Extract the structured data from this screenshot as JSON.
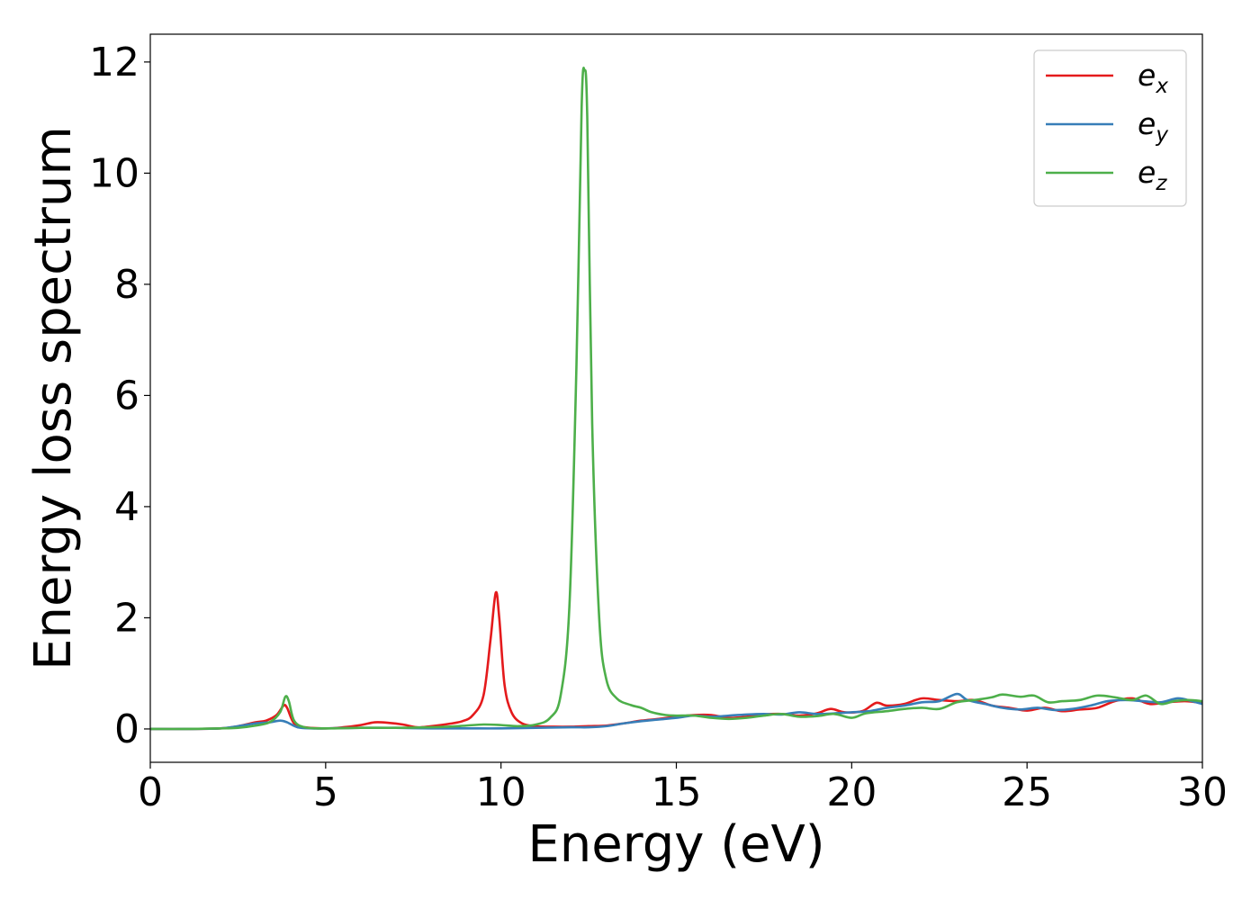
{
  "chart_data": {
    "type": "line",
    "title": "",
    "xlabel": "Energy (eV)",
    "ylabel": "Energy loss spectrum",
    "xlim": [
      0,
      30
    ],
    "ylim": [
      -0.6,
      12.5
    ],
    "xticks": [
      0,
      5,
      10,
      15,
      20,
      25,
      30
    ],
    "xtick_labels": [
      "0",
      "5",
      "10",
      "15",
      "20",
      "25",
      "30"
    ],
    "yticks": [
      0,
      2,
      4,
      6,
      8,
      10,
      12
    ],
    "ytick_labels": [
      "0",
      "2",
      "4",
      "6",
      "8",
      "10",
      "12"
    ],
    "grid": false,
    "legend_position": "top-right",
    "series": [
      {
        "name": "e_x",
        "label_base": "e",
        "label_sub": "x",
        "color": "#e41a1c",
        "points": [
          [
            0,
            0
          ],
          [
            1,
            0
          ],
          [
            2,
            0.01
          ],
          [
            2.5,
            0.05
          ],
          [
            3,
            0.12
          ],
          [
            3.3,
            0.15
          ],
          [
            3.6,
            0.25
          ],
          [
            3.8,
            0.42
          ],
          [
            3.9,
            0.38
          ],
          [
            4.1,
            0.1
          ],
          [
            4.4,
            0.03
          ],
          [
            5,
            0.01
          ],
          [
            5.5,
            0.03
          ],
          [
            6,
            0.07
          ],
          [
            6.4,
            0.12
          ],
          [
            6.8,
            0.11
          ],
          [
            7.2,
            0.08
          ],
          [
            7.6,
            0.03
          ],
          [
            8,
            0.05
          ],
          [
            8.5,
            0.09
          ],
          [
            8.9,
            0.14
          ],
          [
            9.2,
            0.25
          ],
          [
            9.5,
            0.6
          ],
          [
            9.7,
            1.6
          ],
          [
            9.85,
            2.45
          ],
          [
            9.95,
            2.0
          ],
          [
            10.1,
            0.8
          ],
          [
            10.3,
            0.3
          ],
          [
            10.6,
            0.1
          ],
          [
            11,
            0.05
          ],
          [
            11.5,
            0.04
          ],
          [
            12,
            0.04
          ],
          [
            12.5,
            0.05
          ],
          [
            13,
            0.06
          ],
          [
            13.5,
            0.1
          ],
          [
            14,
            0.15
          ],
          [
            14.5,
            0.18
          ],
          [
            15,
            0.22
          ],
          [
            15.5,
            0.25
          ],
          [
            16,
            0.25
          ],
          [
            16.5,
            0.2
          ],
          [
            17,
            0.22
          ],
          [
            17.5,
            0.26
          ],
          [
            18,
            0.27
          ],
          [
            18.5,
            0.24
          ],
          [
            19,
            0.28
          ],
          [
            19.4,
            0.36
          ],
          [
            19.8,
            0.3
          ],
          [
            20.3,
            0.32
          ],
          [
            20.7,
            0.47
          ],
          [
            21,
            0.42
          ],
          [
            21.5,
            0.45
          ],
          [
            22,
            0.55
          ],
          [
            22.5,
            0.52
          ],
          [
            23,
            0.5
          ],
          [
            23.5,
            0.52
          ],
          [
            24,
            0.42
          ],
          [
            24.5,
            0.38
          ],
          [
            25,
            0.33
          ],
          [
            25.5,
            0.38
          ],
          [
            26,
            0.32
          ],
          [
            26.5,
            0.35
          ],
          [
            27,
            0.38
          ],
          [
            27.5,
            0.5
          ],
          [
            28,
            0.55
          ],
          [
            28.5,
            0.45
          ],
          [
            29,
            0.48
          ],
          [
            29.5,
            0.5
          ],
          [
            30,
            0.47
          ]
        ]
      },
      {
        "name": "e_y",
        "label_base": "e",
        "label_sub": "y",
        "color": "#377eb8",
        "points": [
          [
            0,
            0
          ],
          [
            1,
            0
          ],
          [
            2,
            0.01
          ],
          [
            2.5,
            0.05
          ],
          [
            3,
            0.1
          ],
          [
            3.4,
            0.12
          ],
          [
            3.7,
            0.15
          ],
          [
            3.9,
            0.12
          ],
          [
            4.2,
            0.03
          ],
          [
            4.6,
            0.01
          ],
          [
            5,
            0.01
          ],
          [
            6,
            0.02
          ],
          [
            7,
            0.02
          ],
          [
            8,
            0.01
          ],
          [
            9,
            0.01
          ],
          [
            10,
            0.01
          ],
          [
            11,
            0.02
          ],
          [
            12,
            0.03
          ],
          [
            12.5,
            0.03
          ],
          [
            13,
            0.05
          ],
          [
            13.5,
            0.1
          ],
          [
            14,
            0.14
          ],
          [
            14.5,
            0.17
          ],
          [
            15,
            0.2
          ],
          [
            15.5,
            0.24
          ],
          [
            16,
            0.22
          ],
          [
            16.5,
            0.24
          ],
          [
            17,
            0.26
          ],
          [
            17.5,
            0.27
          ],
          [
            18,
            0.26
          ],
          [
            18.5,
            0.3
          ],
          [
            19,
            0.27
          ],
          [
            19.5,
            0.28
          ],
          [
            20,
            0.3
          ],
          [
            20.5,
            0.32
          ],
          [
            21,
            0.38
          ],
          [
            21.5,
            0.42
          ],
          [
            22,
            0.48
          ],
          [
            22.5,
            0.5
          ],
          [
            23,
            0.63
          ],
          [
            23.3,
            0.52
          ],
          [
            23.8,
            0.45
          ],
          [
            24.3,
            0.38
          ],
          [
            24.8,
            0.35
          ],
          [
            25.3,
            0.38
          ],
          [
            25.8,
            0.34
          ],
          [
            26.3,
            0.36
          ],
          [
            26.8,
            0.42
          ],
          [
            27.3,
            0.5
          ],
          [
            27.8,
            0.52
          ],
          [
            28.3,
            0.5
          ],
          [
            28.8,
            0.48
          ],
          [
            29.3,
            0.55
          ],
          [
            29.7,
            0.5
          ],
          [
            30,
            0.45
          ]
        ]
      },
      {
        "name": "e_z",
        "label_base": "e",
        "label_sub": "z",
        "color": "#4daf4a",
        "points": [
          [
            0,
            0
          ],
          [
            1,
            0
          ],
          [
            2,
            0.01
          ],
          [
            2.5,
            0.02
          ],
          [
            3,
            0.06
          ],
          [
            3.4,
            0.12
          ],
          [
            3.7,
            0.3
          ],
          [
            3.85,
            0.58
          ],
          [
            3.95,
            0.5
          ],
          [
            4.1,
            0.15
          ],
          [
            4.4,
            0.03
          ],
          [
            5,
            0.01
          ],
          [
            6,
            0.02
          ],
          [
            7,
            0.02
          ],
          [
            8,
            0.03
          ],
          [
            8.5,
            0.04
          ],
          [
            9,
            0.06
          ],
          [
            9.5,
            0.08
          ],
          [
            10,
            0.07
          ],
          [
            10.5,
            0.05
          ],
          [
            11,
            0.08
          ],
          [
            11.4,
            0.2
          ],
          [
            11.7,
            0.6
          ],
          [
            11.95,
            2.2
          ],
          [
            12.15,
            6.5
          ],
          [
            12.3,
            11.2
          ],
          [
            12.38,
            11.85
          ],
          [
            12.46,
            11.0
          ],
          [
            12.6,
            5.5
          ],
          [
            12.8,
            2.0
          ],
          [
            13,
            0.9
          ],
          [
            13.3,
            0.55
          ],
          [
            13.7,
            0.43
          ],
          [
            14,
            0.38
          ],
          [
            14.3,
            0.3
          ],
          [
            14.7,
            0.25
          ],
          [
            15,
            0.24
          ],
          [
            15.5,
            0.24
          ],
          [
            16,
            0.2
          ],
          [
            16.5,
            0.18
          ],
          [
            17,
            0.2
          ],
          [
            17.5,
            0.24
          ],
          [
            18,
            0.27
          ],
          [
            18.5,
            0.22
          ],
          [
            19,
            0.23
          ],
          [
            19.5,
            0.27
          ],
          [
            20,
            0.2
          ],
          [
            20.4,
            0.28
          ],
          [
            21,
            0.32
          ],
          [
            21.5,
            0.36
          ],
          [
            22,
            0.38
          ],
          [
            22.5,
            0.36
          ],
          [
            23,
            0.48
          ],
          [
            23.5,
            0.52
          ],
          [
            24,
            0.57
          ],
          [
            24.3,
            0.62
          ],
          [
            24.8,
            0.58
          ],
          [
            25.2,
            0.6
          ],
          [
            25.6,
            0.48
          ],
          [
            26,
            0.5
          ],
          [
            26.5,
            0.52
          ],
          [
            27,
            0.6
          ],
          [
            27.5,
            0.57
          ],
          [
            28,
            0.52
          ],
          [
            28.4,
            0.6
          ],
          [
            28.8,
            0.45
          ],
          [
            29.2,
            0.5
          ],
          [
            29.6,
            0.52
          ],
          [
            30,
            0.5
          ]
        ]
      }
    ]
  }
}
